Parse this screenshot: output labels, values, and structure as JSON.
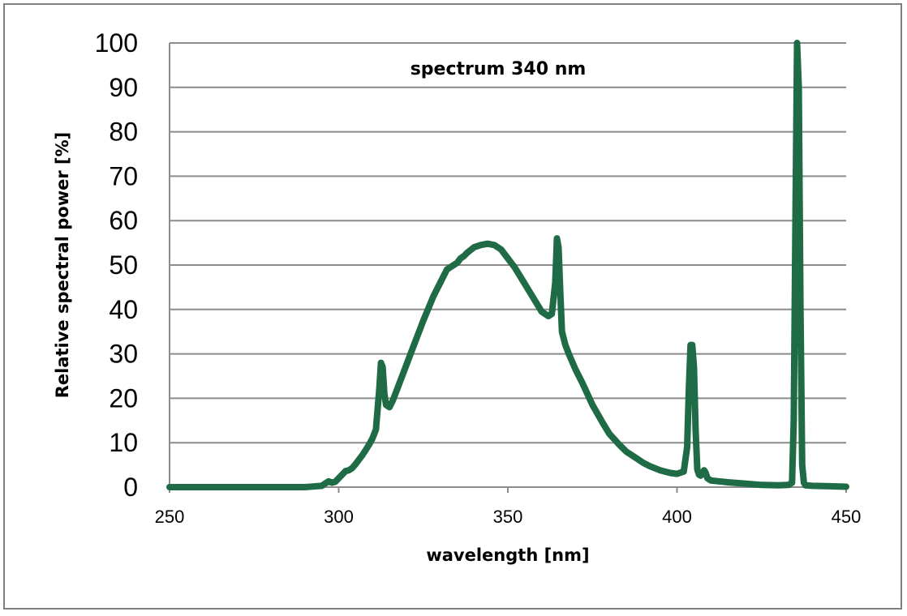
{
  "chart_data": {
    "type": "line",
    "title": "spectrum 340 nm",
    "xlabel": "wavelength [nm]",
    "ylabel": "Relative spectral power [%]",
    "xlim": [
      250,
      450
    ],
    "ylim": [
      0,
      100
    ],
    "xticks": [
      "250",
      "300",
      "350",
      "400",
      "450"
    ],
    "yticks": [
      "0",
      "10",
      "20",
      "30",
      "40",
      "50",
      "60",
      "70",
      "80",
      "90",
      "100"
    ],
    "grid": "horizontal",
    "legend": "none",
    "colors": {
      "line": "#1e6b45",
      "grid": "#8c8c8c",
      "frame": "#7f7f7f"
    },
    "series": [
      {
        "x": [
          250,
          280,
          290,
          295,
          296,
          297,
          298,
          299,
          300,
          301,
          302,
          303,
          304,
          305,
          306,
          307,
          308,
          309,
          310,
          311,
          312,
          312.5,
          313,
          313.5,
          314,
          315,
          316,
          317,
          318,
          320,
          322,
          325,
          328,
          330,
          332,
          333,
          334,
          335,
          336,
          337,
          338,
          340,
          342,
          344,
          346,
          348,
          350,
          352,
          354,
          356,
          358,
          360,
          362,
          363,
          364,
          364.5,
          365,
          365.5,
          366,
          367,
          368,
          370,
          372,
          375,
          378,
          380,
          383,
          385,
          388,
          390,
          392,
          395,
          398,
          400,
          402,
          403,
          403.5,
          404,
          404.5,
          405,
          405.5,
          406,
          406.5,
          407,
          407.5,
          408,
          408.5,
          409,
          410,
          415,
          420,
          425,
          430,
          433,
          434,
          434.5,
          435,
          435.5,
          436,
          436.5,
          437,
          437.5,
          438,
          440,
          445,
          450
        ],
        "y": [
          0,
          0,
          0,
          0.3,
          0.8,
          1.3,
          1.0,
          1.2,
          2.0,
          2.8,
          3.6,
          3.8,
          4.3,
          5.2,
          6.2,
          7.2,
          8.4,
          9.6,
          11,
          13,
          22,
          28,
          27,
          21,
          18.5,
          18,
          19.5,
          21.5,
          23.5,
          27.5,
          31.5,
          37.5,
          43,
          46,
          49,
          49.5,
          50,
          50.5,
          51.5,
          52,
          52.8,
          54,
          54.5,
          54.8,
          54.5,
          53.5,
          51.5,
          49.5,
          47,
          44.5,
          42,
          39.5,
          38.5,
          39,
          46,
          56,
          54,
          44,
          35,
          32,
          30,
          26.5,
          23.5,
          18.5,
          14.5,
          12,
          9.5,
          8,
          6.5,
          5.5,
          4.7,
          3.8,
          3.2,
          3.0,
          3.5,
          9,
          22,
          32,
          32,
          27,
          13,
          4,
          2.8,
          2.6,
          3.0,
          3.8,
          3.2,
          2.0,
          1.5,
          1.1,
          0.8,
          0.5,
          0.4,
          0.5,
          1.0,
          15,
          60,
          100,
          90,
          40,
          5,
          1.0,
          0.4,
          0.3,
          0.2,
          0.1
        ]
      }
    ]
  }
}
